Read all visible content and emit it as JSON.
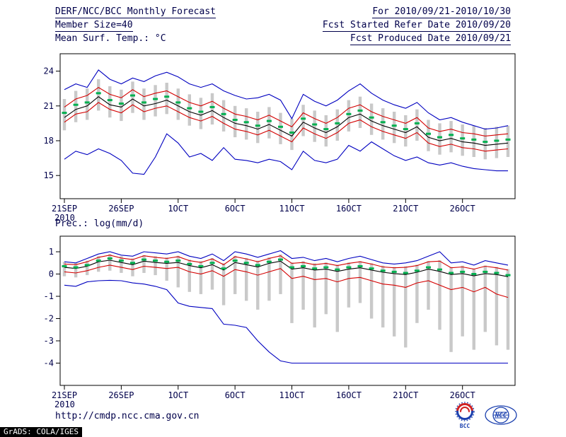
{
  "header": {
    "left_lines": [
      "DERF/NCC/BCC Monthly Forecast",
      "Member Size=40"
    ],
    "right_lines": [
      "For 2010/09/21-2010/10/30",
      "Fcst Started Refer Date 2010/09/20",
      "Fcst Produced Date 2010/09/21"
    ]
  },
  "footer": {
    "url": "http://cmdp.ncc.cma.gov.cn",
    "credit": "GrADS: COLA/IGES",
    "logos": {
      "bcc": "BCC",
      "ncc": "NCC"
    }
  },
  "colors": {
    "text": "#00004b",
    "frame": "#000000",
    "ensemble_spread_bar": "#c9c9c9",
    "ensemble_mean_green": "#00b050",
    "bounds_red": "#d40000",
    "extremes_blue": "#0000c0",
    "control_black": "#000000"
  },
  "chart_data": [
    {
      "type": "line",
      "title": "Mean Surf. Temp.: °C",
      "ylim": [
        13.0,
        25.5
      ],
      "yticks": [
        15,
        18,
        21,
        24
      ],
      "x_tick_labels": [
        "21SEP",
        "26SEP",
        "1OCT",
        "6OCT",
        "11OCT",
        "16OCT",
        "21OCT",
        "26OCT"
      ],
      "x_tick_days": [
        0,
        5,
        10,
        15,
        20,
        25,
        30,
        35
      ],
      "x_sub_label": "2010",
      "bar_color": "#c9c9c9",
      "bars": {
        "name": "ensemble-spread",
        "high": [
          21.6,
          22.3,
          22.5,
          23.3,
          22.7,
          22.4,
          23.1,
          22.5,
          22.8,
          23.0,
          22.5,
          22.0,
          21.7,
          22.1,
          21.5,
          21.0,
          20.8,
          20.5,
          20.9,
          20.4,
          19.9,
          21.1,
          20.6,
          20.2,
          20.7,
          21.5,
          21.8,
          21.2,
          20.8,
          20.5,
          20.2,
          20.7,
          19.8,
          19.5,
          19.7,
          19.4,
          19.3,
          19.1,
          19.2,
          19.3
        ],
        "low": [
          18.9,
          19.6,
          19.8,
          20.6,
          20.0,
          19.7,
          20.4,
          19.8,
          20.1,
          20.3,
          19.8,
          19.3,
          19.0,
          19.4,
          18.8,
          18.3,
          18.1,
          17.8,
          18.2,
          17.7,
          17.2,
          18.4,
          17.9,
          17.5,
          18.0,
          18.8,
          19.1,
          18.5,
          18.1,
          17.8,
          17.5,
          18.0,
          17.1,
          16.8,
          17.0,
          16.7,
          16.6,
          16.4,
          16.5,
          16.6
        ]
      },
      "series": [
        {
          "name": "upper-red",
          "color": "#d40000",
          "style": "line",
          "values": [
            20.9,
            21.6,
            21.9,
            22.6,
            22.0,
            21.7,
            22.4,
            21.8,
            22.1,
            22.3,
            21.8,
            21.3,
            21.0,
            21.4,
            20.8,
            20.3,
            20.1,
            19.8,
            20.2,
            19.7,
            19.2,
            20.4,
            19.9,
            19.5,
            20.0,
            20.8,
            21.1,
            20.5,
            20.1,
            19.8,
            19.5,
            20.0,
            19.1,
            18.8,
            19.0,
            18.7,
            18.6,
            18.4,
            18.5,
            18.6
          ]
        },
        {
          "name": "lower-red",
          "color": "#d40000",
          "style": "line",
          "values": [
            19.6,
            20.3,
            20.5,
            21.3,
            20.7,
            20.4,
            21.1,
            20.5,
            20.8,
            21.0,
            20.5,
            20.0,
            19.7,
            20.1,
            19.5,
            19.0,
            18.8,
            18.5,
            18.9,
            18.4,
            17.9,
            19.1,
            18.6,
            18.2,
            18.7,
            19.5,
            19.8,
            19.2,
            18.8,
            18.5,
            18.2,
            18.7,
            17.8,
            17.5,
            17.7,
            17.4,
            17.3,
            17.1,
            17.2,
            17.3
          ]
        },
        {
          "name": "max-blue",
          "color": "#0000c0",
          "style": "line",
          "values": [
            22.4,
            22.9,
            22.6,
            24.1,
            23.3,
            22.9,
            23.4,
            23.1,
            23.6,
            23.9,
            23.5,
            22.9,
            22.6,
            22.9,
            22.3,
            21.9,
            21.6,
            21.7,
            22.0,
            21.5,
            19.9,
            22.0,
            21.4,
            21.0,
            21.5,
            22.3,
            22.9,
            22.1,
            21.5,
            21.1,
            20.8,
            21.3,
            20.4,
            19.8,
            20.0,
            19.6,
            19.3,
            19.0,
            19.1,
            19.3
          ]
        },
        {
          "name": "min-blue",
          "color": "#0000c0",
          "style": "line",
          "values": [
            16.4,
            17.1,
            16.8,
            17.3,
            16.9,
            16.3,
            15.2,
            15.1,
            16.6,
            18.6,
            17.8,
            16.6,
            16.9,
            16.3,
            17.4,
            16.4,
            16.3,
            16.1,
            16.4,
            16.2,
            15.5,
            17.1,
            16.3,
            16.1,
            16.4,
            17.6,
            17.1,
            17.9,
            17.3,
            16.7,
            16.3,
            16.6,
            16.1,
            15.9,
            16.1,
            15.8,
            15.6,
            15.5,
            15.4,
            15.4
          ]
        },
        {
          "name": "control-black",
          "color": "#000000",
          "style": "line",
          "values": [
            20.0,
            20.7,
            21.0,
            21.8,
            21.1,
            20.9,
            21.6,
            21.0,
            21.2,
            21.5,
            21.0,
            20.5,
            20.2,
            20.6,
            20.0,
            19.5,
            19.3,
            19.0,
            19.4,
            18.9,
            18.4,
            19.6,
            19.1,
            18.7,
            19.2,
            20.0,
            20.3,
            19.7,
            19.3,
            19.0,
            18.7,
            19.2,
            18.3,
            18.0,
            18.2,
            17.9,
            17.8,
            17.6,
            17.7,
            17.8
          ]
        },
        {
          "name": "ensemble-mean-green",
          "color": "#00b050",
          "style": "dash",
          "values": [
            20.4,
            21.1,
            21.3,
            22.1,
            21.5,
            21.2,
            21.9,
            21.3,
            21.6,
            21.8,
            21.3,
            20.8,
            20.5,
            20.9,
            20.3,
            19.8,
            19.6,
            19.3,
            19.7,
            19.2,
            18.7,
            19.9,
            19.4,
            19.0,
            19.5,
            20.3,
            20.6,
            20.0,
            19.6,
            19.3,
            19.0,
            19.5,
            18.6,
            18.3,
            18.5,
            18.2,
            18.1,
            17.9,
            18.0,
            18.1
          ]
        }
      ]
    },
    {
      "type": "line",
      "title": "Prec.: log(mm/d)",
      "ylim": [
        -5.0,
        1.7
      ],
      "yticks": [
        1,
        0,
        -1,
        -2,
        -3,
        -4
      ],
      "x_tick_labels": [
        "21SEP",
        "26SEP",
        "1OCT",
        "6OCT",
        "11OCT",
        "16OCT",
        "21OCT",
        "26OCT"
      ],
      "x_tick_days": [
        0,
        5,
        10,
        15,
        20,
        25,
        30,
        35
      ],
      "x_sub_label": "2010",
      "bar_color": "#c9c9c9",
      "bars": {
        "name": "ensemble-spread",
        "high": [
          0.55,
          0.5,
          0.6,
          0.8,
          0.9,
          0.8,
          0.7,
          0.85,
          0.8,
          0.75,
          0.82,
          0.65,
          0.58,
          0.72,
          0.48,
          0.82,
          0.72,
          0.6,
          0.75,
          0.88,
          0.52,
          0.58,
          0.48,
          0.52,
          0.42,
          0.52,
          0.58,
          0.48,
          0.38,
          0.32,
          0.35,
          0.42,
          0.58,
          0.62,
          0.32,
          0.38,
          0.25,
          0.38,
          0.32,
          0.22
        ],
        "low": [
          -0.1,
          -0.15,
          -0.05,
          0.1,
          0.15,
          0.05,
          -0.1,
          0.05,
          -0.05,
          -0.3,
          -0.6,
          -0.8,
          -0.9,
          -0.7,
          -1.4,
          -0.9,
          -1.2,
          -1.6,
          -1.2,
          -0.9,
          -2.2,
          -1.6,
          -2.4,
          -1.8,
          -2.6,
          -1.5,
          -1.3,
          -2.0,
          -2.4,
          -2.8,
          -3.3,
          -2.2,
          -1.6,
          -2.5,
          -3.5,
          -2.8,
          -3.4,
          -2.6,
          -3.2,
          -3.4
        ]
      },
      "series": [
        {
          "name": "upper-red",
          "color": "#d40000",
          "style": "line",
          "values": [
            0.45,
            0.42,
            0.55,
            0.75,
            0.85,
            0.72,
            0.65,
            0.82,
            0.75,
            0.7,
            0.78,
            0.6,
            0.52,
            0.68,
            0.42,
            0.78,
            0.68,
            0.55,
            0.7,
            0.82,
            0.48,
            0.52,
            0.42,
            0.48,
            0.38,
            0.48,
            0.55,
            0.45,
            0.32,
            0.28,
            0.3,
            0.38,
            0.55,
            0.58,
            0.28,
            0.32,
            0.22,
            0.35,
            0.28,
            0.18
          ]
        },
        {
          "name": "lower-red",
          "color": "#d40000",
          "style": "line",
          "values": [
            0.1,
            0.05,
            0.15,
            0.3,
            0.4,
            0.3,
            0.2,
            0.35,
            0.3,
            0.25,
            0.3,
            0.1,
            0.0,
            0.15,
            -0.1,
            0.2,
            0.1,
            -0.05,
            0.1,
            0.25,
            -0.2,
            -0.1,
            -0.25,
            -0.2,
            -0.35,
            -0.2,
            -0.15,
            -0.3,
            -0.45,
            -0.5,
            -0.6,
            -0.4,
            -0.3,
            -0.5,
            -0.7,
            -0.6,
            -0.8,
            -0.6,
            -0.9,
            -1.05
          ]
        },
        {
          "name": "max-blue",
          "color": "#0000c0",
          "style": "line",
          "values": [
            0.55,
            0.5,
            0.7,
            0.9,
            1.0,
            0.85,
            0.8,
            1.0,
            0.95,
            0.9,
            1.0,
            0.8,
            0.7,
            0.9,
            0.6,
            1.0,
            0.9,
            0.75,
            0.9,
            1.05,
            0.7,
            0.75,
            0.6,
            0.7,
            0.55,
            0.7,
            0.8,
            0.65,
            0.5,
            0.45,
            0.5,
            0.6,
            0.8,
            1.0,
            0.5,
            0.55,
            0.4,
            0.6,
            0.5,
            0.4
          ]
        },
        {
          "name": "min-blue",
          "color": "#0000c0",
          "style": "line",
          "values": [
            -0.5,
            -0.55,
            -0.35,
            -0.3,
            -0.28,
            -0.3,
            -0.4,
            -0.45,
            -0.55,
            -0.7,
            -1.3,
            -1.45,
            -1.5,
            -1.55,
            -2.25,
            -2.3,
            -2.4,
            -3.0,
            -3.5,
            -3.9,
            -4.0,
            -4.0,
            -4.0,
            -4.0,
            -4.0,
            -4.0,
            -4.0,
            -4.0,
            -4.0,
            -4.0,
            -4.0,
            -4.0,
            -4.0,
            -4.0,
            -4.0,
            -4.0,
            -4.0,
            -4.0,
            -4.0,
            -4.0
          ]
        },
        {
          "name": "control-black",
          "color": "#000000",
          "style": "line",
          "values": [
            0.3,
            0.25,
            0.35,
            0.55,
            0.62,
            0.52,
            0.42,
            0.58,
            0.52,
            0.48,
            0.52,
            0.38,
            0.28,
            0.42,
            0.18,
            0.52,
            0.42,
            0.32,
            0.48,
            0.58,
            0.22,
            0.28,
            0.18,
            0.22,
            0.12,
            0.22,
            0.28,
            0.18,
            0.08,
            0.02,
            -0.02,
            0.08,
            0.22,
            0.12,
            -0.02,
            0.02,
            -0.08,
            0.02,
            -0.02,
            -0.12
          ]
        },
        {
          "name": "ensemble-mean-green",
          "color": "#00b050",
          "style": "dash",
          "values": [
            0.35,
            0.3,
            0.4,
            0.6,
            0.7,
            0.6,
            0.5,
            0.65,
            0.6,
            0.55,
            0.6,
            0.45,
            0.35,
            0.5,
            0.25,
            0.6,
            0.5,
            0.4,
            0.55,
            0.65,
            0.3,
            0.35,
            0.25,
            0.3,
            0.2,
            0.3,
            0.35,
            0.25,
            0.15,
            0.1,
            0.05,
            0.15,
            0.3,
            0.2,
            0.05,
            0.1,
            0.0,
            0.1,
            0.05,
            -0.05
          ]
        }
      ]
    }
  ]
}
